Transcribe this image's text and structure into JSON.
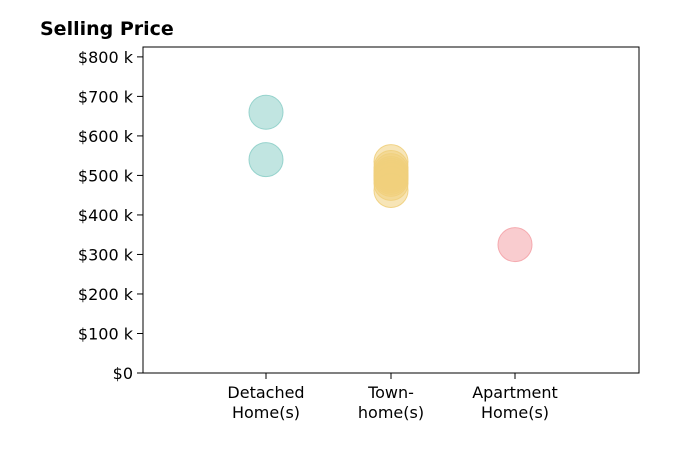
{
  "chart_data": {
    "type": "scatter",
    "title": "Selling Price",
    "xlabel": "",
    "ylabel": "",
    "categories": [
      [
        "Detached",
        "Home(s)"
      ],
      [
        "Town-",
        "home(s)"
      ],
      [
        "Apartment",
        "Home(s)"
      ]
    ],
    "ylim": [
      0,
      825
    ],
    "yticks": [
      0,
      100,
      200,
      300,
      400,
      500,
      600,
      700,
      800
    ],
    "ytick_labels": [
      "$0",
      "$100 k",
      "$200 k",
      "$300 k",
      "$400 k",
      "$500 k",
      "$600 k",
      "$700 k",
      "$800 k"
    ],
    "grid": false,
    "legend": "none",
    "series": [
      {
        "category_index": 0,
        "color": "#8ecfc9",
        "values": [
          660,
          540
        ]
      },
      {
        "category_index": 1,
        "color": "#f0cf7c",
        "values": [
          535,
          520,
          512,
          505,
          500,
          495,
          490,
          480,
          462
        ]
      },
      {
        "category_index": 2,
        "color": "#f4a3a8",
        "values": [
          325
        ]
      }
    ]
  }
}
